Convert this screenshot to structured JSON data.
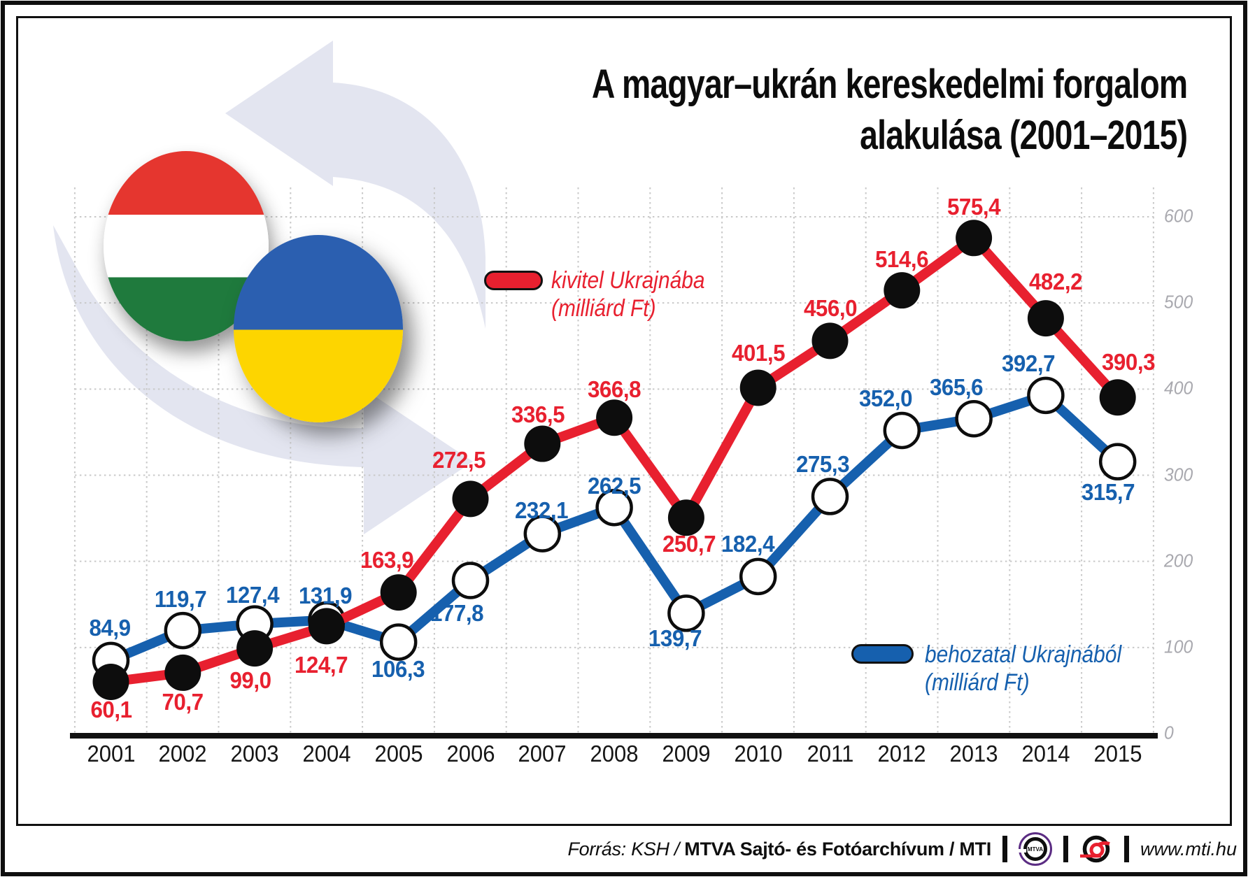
{
  "title": {
    "line1": "A magyar–ukrán kereskedelmi forgalom",
    "line2": "alakulása (2001–2015)"
  },
  "legend_export": {
    "line1": "kivitel Ukrajnába",
    "line2": "(milliárd Ft)"
  },
  "legend_import": {
    "line1": "behozatal Ukrajnából",
    "line2": "(milliárd Ft)"
  },
  "footer": {
    "source_prefix": "Forrás: KSH / ",
    "source_bold": "MTVA Sajtó- és Fotóarchívum",
    "source_suffix": " / MTI",
    "mtva_text": "MTVA",
    "url": "www.mti.hu"
  },
  "colors": {
    "export_red": "#e8202f",
    "import_blue": "#1660ae",
    "grid": "#c9c9c9",
    "axis": "#111111",
    "tick_text": "#a9a9af",
    "arrow_decor": "#e3e5f0"
  },
  "chart_data": {
    "type": "line",
    "categories": [
      "2001",
      "2002",
      "2003",
      "2004",
      "2005",
      "2006",
      "2007",
      "2008",
      "2009",
      "2010",
      "2011",
      "2012",
      "2013",
      "2014",
      "2015"
    ],
    "series": [
      {
        "name": "kivitel Ukrajnába (milliárd Ft)",
        "color_key": "export_red",
        "values": [
          60.1,
          70.7,
          99.0,
          124.7,
          163.9,
          272.5,
          336.5,
          366.8,
          250.7,
          401.5,
          456.0,
          514.6,
          575.4,
          482.2,
          390.3
        ],
        "labels": [
          "60,1",
          "70,7",
          "99,0",
          "124,7",
          "163,9",
          "272,5",
          "336,5",
          "366,8",
          "250,7",
          "401,5",
          "456,0",
          "514,6",
          "575,4",
          "482,2",
          "390,3"
        ],
        "label_dx": [
          0,
          0,
          -6,
          -8,
          -17,
          -17,
          -6,
          0,
          4,
          0,
          0,
          0,
          0,
          14,
          15
        ],
        "label_dy": [
          40,
          42,
          46,
          56,
          -46,
          -55,
          -42,
          -40,
          38,
          -49,
          -46,
          -44,
          -44,
          -52,
          -50
        ],
        "marker": "black-filled"
      },
      {
        "name": "behozatal Ukrajnából (milliárd Ft)",
        "color_key": "import_blue",
        "values": [
          84.9,
          119.7,
          127.4,
          131.9,
          106.3,
          177.8,
          232.1,
          262.5,
          139.7,
          182.4,
          275.3,
          352.0,
          365.6,
          392.7,
          315.7
        ],
        "labels": [
          "84,9",
          "119,7",
          "127,4",
          "131,9",
          "106,3",
          "177,8",
          "232,1",
          "262,5",
          "139,7",
          "182,4",
          "275,3",
          "352,0",
          "365,6",
          "392,7",
          "315,7"
        ],
        "label_dx": [
          -2,
          -3,
          -3,
          -2,
          -1,
          -20,
          -1,
          0,
          -16,
          -15,
          -11,
          -23,
          -25,
          -25,
          -14
        ],
        "label_dy": [
          -46,
          -45,
          -41,
          -35,
          39,
          47,
          -33,
          -31,
          36,
          -46,
          -46,
          -45,
          -45,
          -45,
          44
        ],
        "marker": "white-filled"
      }
    ],
    "ylim": [
      0,
      600
    ],
    "yticks": [
      "0",
      "100",
      "200",
      "300",
      "400",
      "500",
      "600"
    ],
    "grid": true,
    "grid_style": "dotted",
    "legend_position": "inside"
  }
}
